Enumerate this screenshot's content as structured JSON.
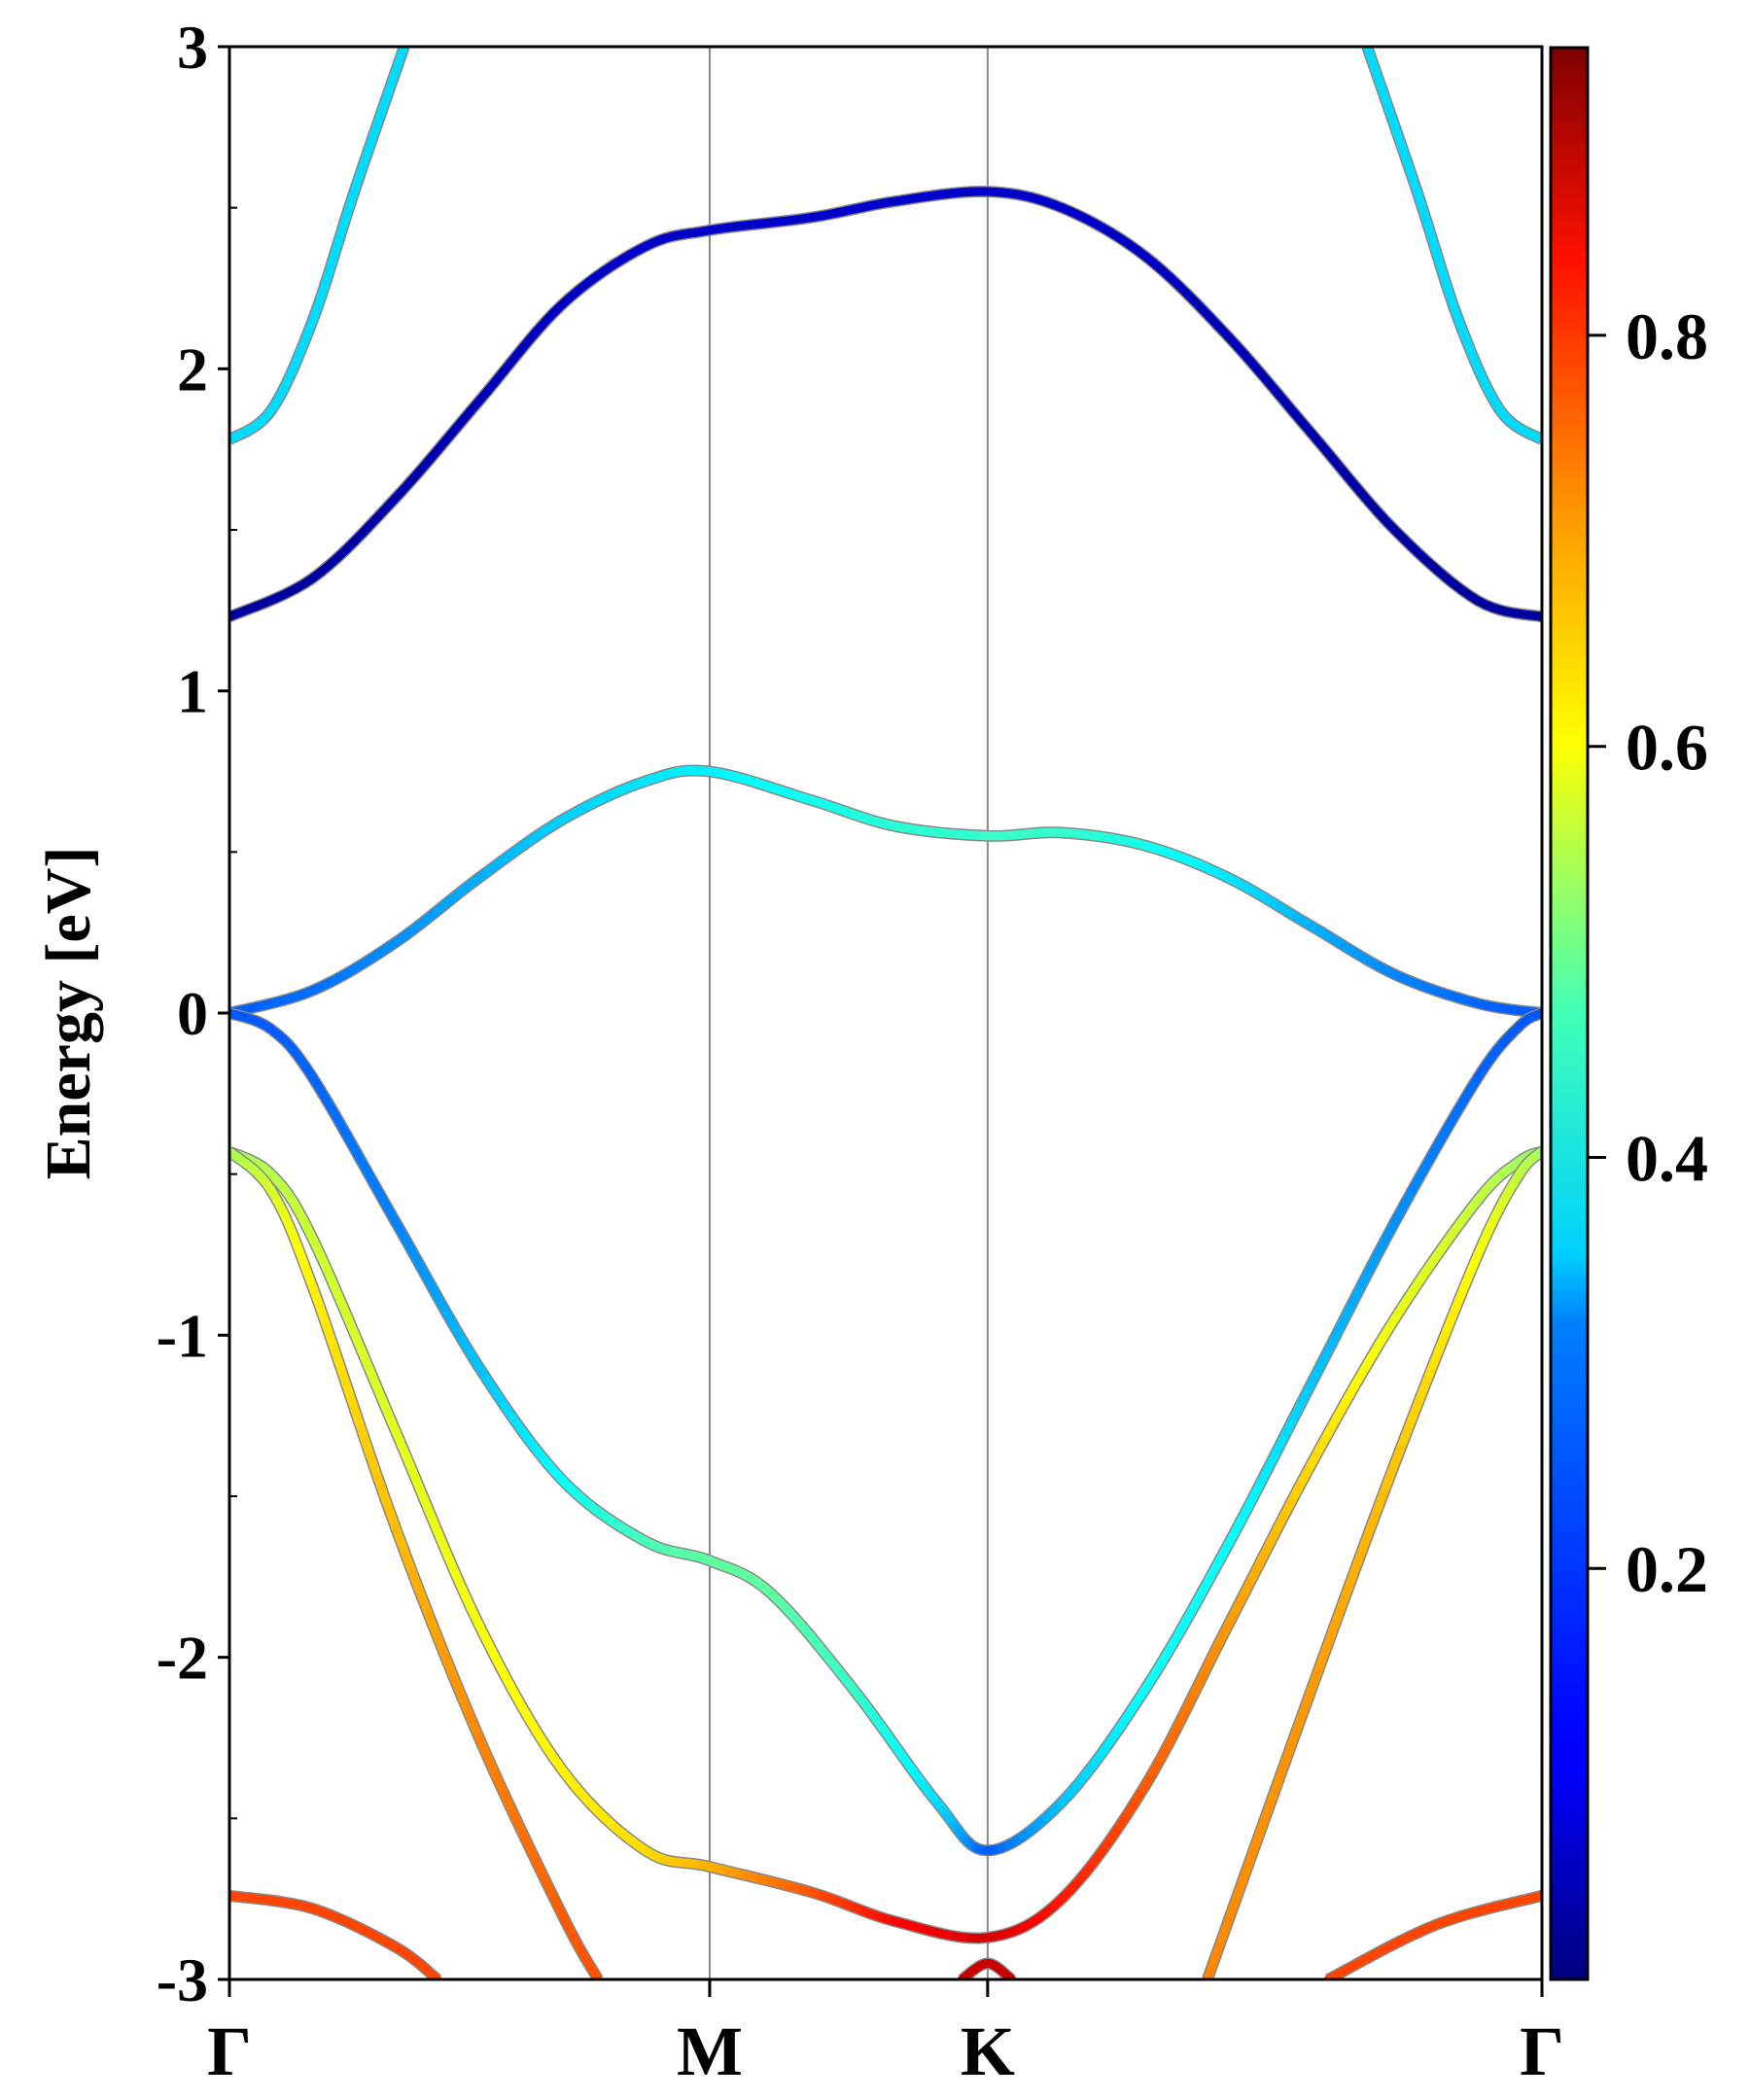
{
  "chart_data": {
    "type": "line",
    "title": "",
    "ylabel": "Energy [eV]",
    "xlabel": "",
    "ylim": [
      -3,
      3
    ],
    "yticks": [
      "3",
      "2",
      "1",
      "0",
      "-1",
      "-2",
      "-3"
    ],
    "xticks": [
      {
        "label": "Γ",
        "k": 0
      },
      {
        "label": "M",
        "k": 0.577
      },
      {
        "label": "K",
        "k": 0.911
      },
      {
        "label": "Γ",
        "k": 1.577
      }
    ],
    "colormap": "jet",
    "colorbar": {
      "range": [
        0,
        0.94
      ],
      "ticks": [
        "0.2",
        "0.4",
        "0.6",
        "0.8"
      ]
    },
    "grid": false,
    "series": [
      {
        "k": [
          0,
          0.05,
          0.1,
          0.15,
          0.21
        ],
        "E": [
          1.78,
          1.87,
          2.15,
          2.55,
          3.0
        ],
        "w": [
          0.32,
          0.32,
          0.32,
          0.32,
          0.32
        ]
      },
      {
        "k": [
          1.367,
          1.427,
          1.477,
          1.527,
          1.577
        ],
        "E": [
          3.0,
          2.55,
          2.15,
          1.87,
          1.78
        ],
        "w": [
          0.32,
          0.32,
          0.32,
          0.32,
          0.32
        ]
      },
      {
        "k": [
          0,
          0.1,
          0.2,
          0.3,
          0.4,
          0.5,
          0.577,
          0.7,
          0.8,
          0.911,
          1.0,
          1.1,
          1.2,
          1.3,
          1.4,
          1.5,
          1.577
        ],
        "E": [
          1.23,
          1.35,
          1.6,
          1.9,
          2.2,
          2.38,
          2.43,
          2.47,
          2.52,
          2.55,
          2.5,
          2.35,
          2.1,
          1.8,
          1.5,
          1.28,
          1.23
        ],
        "w": [
          0.03,
          0.03,
          0.04,
          0.05,
          0.06,
          0.07,
          0.07,
          0.07,
          0.07,
          0.07,
          0.07,
          0.06,
          0.05,
          0.04,
          0.03,
          0.03,
          0.03
        ]
      },
      {
        "k": [
          0,
          0.1,
          0.2,
          0.3,
          0.4,
          0.5,
          0.577,
          0.7,
          0.8,
          0.911,
          1.0,
          1.1,
          1.2,
          1.3,
          1.4,
          1.5,
          1.577
        ],
        "E": [
          0,
          0.07,
          0.22,
          0.42,
          0.6,
          0.72,
          0.75,
          0.66,
          0.58,
          0.55,
          0.56,
          0.52,
          0.42,
          0.27,
          0.12,
          0.03,
          0
        ],
        "w": [
          0.2,
          0.22,
          0.25,
          0.28,
          0.31,
          0.33,
          0.34,
          0.37,
          0.39,
          0.4,
          0.4,
          0.37,
          0.33,
          0.28,
          0.24,
          0.21,
          0.2
        ]
      },
      {
        "k": [
          0,
          0.05,
          0.1,
          0.2,
          0.3,
          0.4,
          0.5,
          0.577,
          0.65,
          0.75,
          0.85,
          0.911,
          1.0,
          1.1,
          1.2,
          1.3,
          1.4,
          1.5,
          1.55,
          1.577
        ],
        "E": [
          0,
          -0.05,
          -0.2,
          -0.65,
          -1.1,
          -1.45,
          -1.64,
          -1.7,
          -1.8,
          -2.1,
          -2.45,
          -2.6,
          -2.45,
          -2.1,
          -1.65,
          -1.15,
          -0.65,
          -0.2,
          -0.04,
          0
        ],
        "w": [
          0.2,
          0.2,
          0.21,
          0.24,
          0.3,
          0.36,
          0.42,
          0.44,
          0.44,
          0.4,
          0.32,
          0.2,
          0.3,
          0.36,
          0.36,
          0.3,
          0.25,
          0.21,
          0.2,
          0.2
        ]
      },
      {
        "k": [
          0,
          0.05,
          0.1,
          0.2,
          0.3,
          0.4,
          0.5,
          0.577,
          0.7,
          0.8,
          0.911,
          1.0,
          1.1,
          1.2,
          1.3,
          1.4,
          1.5,
          1.55,
          1.577
        ],
        "E": [
          -0.43,
          -0.5,
          -0.7,
          -1.3,
          -1.9,
          -2.35,
          -2.6,
          -2.65,
          -2.73,
          -2.82,
          -2.87,
          -2.75,
          -2.4,
          -1.9,
          -1.4,
          -0.95,
          -0.58,
          -0.46,
          -0.43
        ],
        "w": [
          0.5,
          0.52,
          0.54,
          0.56,
          0.58,
          0.6,
          0.62,
          0.66,
          0.75,
          0.82,
          0.86,
          0.8,
          0.74,
          0.68,
          0.62,
          0.57,
          0.53,
          0.5,
          0.5
        ]
      },
      {
        "k": [
          0,
          0.05,
          0.1,
          0.2,
          0.3,
          0.4,
          0.443
        ],
        "E": [
          -0.43,
          -0.55,
          -0.85,
          -1.6,
          -2.25,
          -2.8,
          -3.0
        ],
        "w": [
          0.5,
          0.55,
          0.6,
          0.65,
          0.7,
          0.74,
          0.75
        ]
      },
      {
        "k": [
          1.175,
          1.3,
          1.4,
          1.5,
          1.55,
          1.577
        ],
        "E": [
          -3.0,
          -2.1,
          -1.4,
          -0.75,
          -0.5,
          -0.43
        ],
        "w": [
          0.7,
          0.68,
          0.64,
          0.58,
          0.53,
          0.5
        ]
      },
      {
        "k": [
          0,
          0.1,
          0.2,
          0.25
        ],
        "E": [
          -2.74,
          -2.78,
          -2.9,
          -3.0
        ],
        "w": [
          0.76,
          0.76,
          0.76,
          0.76
        ]
      },
      {
        "k": [
          1.32,
          1.45,
          1.577
        ],
        "E": [
          -3.0,
          -2.83,
          -2.74
        ],
        "w": [
          0.76,
          0.76,
          0.76
        ]
      },
      {
        "k": [
          0.88,
          0.911,
          0.94
        ],
        "E": [
          -3.0,
          -2.95,
          -3.0
        ],
        "w": [
          0.87,
          0.87,
          0.87
        ]
      }
    ]
  }
}
